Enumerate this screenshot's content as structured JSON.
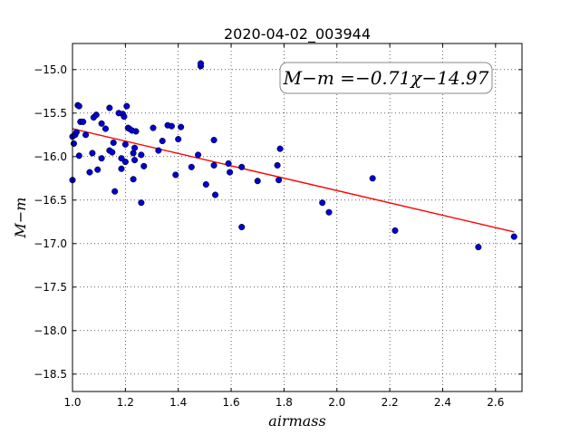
{
  "chart_data": {
    "type": "scatter",
    "title": "2020-04-02_003944",
    "xlabel": "airmass",
    "ylabel": "M−m",
    "xlim": [
      1.0,
      2.7
    ],
    "ylim": [
      -18.7,
      -14.7
    ],
    "y_inverted": true,
    "xticks": [
      1.0,
      1.2,
      1.4,
      1.6,
      1.8,
      2.0,
      2.2,
      2.4,
      2.6
    ],
    "xtick_labels": [
      "1.0",
      "1.2",
      "1.4",
      "1.6",
      "1.8",
      "2.0",
      "2.2",
      "2.4",
      "2.6"
    ],
    "yticks": [
      -15.0,
      -15.5,
      -16.0,
      -16.5,
      -17.0,
      -17.5,
      -18.0,
      -18.5
    ],
    "ytick_labels": [
      "−15.0",
      "−15.5",
      "−16.0",
      "−16.5",
      "−17.0",
      "−17.5",
      "−18.0",
      "−18.5"
    ],
    "grid": true,
    "annotation": "M−m =−0.71χ−14.97",
    "fit": {
      "slope": -0.71,
      "intercept": -14.97,
      "x_range": [
        1.0,
        2.67
      ],
      "color": "#ff0000"
    },
    "marker_color": "#0000cc",
    "points": [
      {
        "x": 1.0,
        "y": -15.77
      },
      {
        "x": 1.0,
        "y": -16.27
      },
      {
        "x": 1.005,
        "y": -15.85
      },
      {
        "x": 1.01,
        "y": -15.75
      },
      {
        "x": 1.015,
        "y": -15.72
      },
      {
        "x": 1.02,
        "y": -15.41
      },
      {
        "x": 1.025,
        "y": -15.42
      },
      {
        "x": 1.025,
        "y": -15.99
      },
      {
        "x": 1.03,
        "y": -15.6
      },
      {
        "x": 1.04,
        "y": -15.6
      },
      {
        "x": 1.05,
        "y": -15.75
      },
      {
        "x": 1.065,
        "y": -16.18
      },
      {
        "x": 1.075,
        "y": -15.96
      },
      {
        "x": 1.08,
        "y": -15.55
      },
      {
        "x": 1.09,
        "y": -15.52
      },
      {
        "x": 1.095,
        "y": -16.15
      },
      {
        "x": 1.11,
        "y": -16.02
      },
      {
        "x": 1.11,
        "y": -15.62
      },
      {
        "x": 1.125,
        "y": -15.68
      },
      {
        "x": 1.14,
        "y": -15.44
      },
      {
        "x": 1.14,
        "y": -15.93
      },
      {
        "x": 1.15,
        "y": -15.95
      },
      {
        "x": 1.155,
        "y": -15.84
      },
      {
        "x": 1.16,
        "y": -16.4
      },
      {
        "x": 1.175,
        "y": -15.5
      },
      {
        "x": 1.185,
        "y": -16.02
      },
      {
        "x": 1.185,
        "y": -16.14
      },
      {
        "x": 1.19,
        "y": -15.51
      },
      {
        "x": 1.195,
        "y": -15.54
      },
      {
        "x": 1.2,
        "y": -16.06
      },
      {
        "x": 1.2,
        "y": -15.86
      },
      {
        "x": 1.205,
        "y": -15.42
      },
      {
        "x": 1.21,
        "y": -15.67
      },
      {
        "x": 1.215,
        "y": -15.68
      },
      {
        "x": 1.225,
        "y": -15.7
      },
      {
        "x": 1.23,
        "y": -16.26
      },
      {
        "x": 1.23,
        "y": -15.96
      },
      {
        "x": 1.235,
        "y": -16.04
      },
      {
        "x": 1.235,
        "y": -15.9
      },
      {
        "x": 1.24,
        "y": -15.71
      },
      {
        "x": 1.26,
        "y": -16.53
      },
      {
        "x": 1.26,
        "y": -15.98
      },
      {
        "x": 1.27,
        "y": -16.11
      },
      {
        "x": 1.305,
        "y": -15.67
      },
      {
        "x": 1.325,
        "y": -15.93
      },
      {
        "x": 1.34,
        "y": -15.82
      },
      {
        "x": 1.36,
        "y": -15.64
      },
      {
        "x": 1.375,
        "y": -15.65
      },
      {
        "x": 1.39,
        "y": -16.21
      },
      {
        "x": 1.4,
        "y": -15.8
      },
      {
        "x": 1.41,
        "y": -15.66
      },
      {
        "x": 1.45,
        "y": -16.12
      },
      {
        "x": 1.475,
        "y": -15.98
      },
      {
        "x": 1.485,
        "y": -14.96
      },
      {
        "x": 1.485,
        "y": -14.93
      },
      {
        "x": 1.505,
        "y": -16.32
      },
      {
        "x": 1.535,
        "y": -15.81
      },
      {
        "x": 1.535,
        "y": -16.1
      },
      {
        "x": 1.54,
        "y": -16.44
      },
      {
        "x": 1.59,
        "y": -16.08
      },
      {
        "x": 1.595,
        "y": -16.18
      },
      {
        "x": 1.64,
        "y": -16.12
      },
      {
        "x": 1.64,
        "y": -16.81
      },
      {
        "x": 1.7,
        "y": -16.28
      },
      {
        "x": 1.775,
        "y": -16.1
      },
      {
        "x": 1.78,
        "y": -16.27
      },
      {
        "x": 1.785,
        "y": -15.91
      },
      {
        "x": 1.945,
        "y": -16.53
      },
      {
        "x": 1.97,
        "y": -16.64
      },
      {
        "x": 2.135,
        "y": -16.25
      },
      {
        "x": 2.22,
        "y": -16.85
      },
      {
        "x": 2.535,
        "y": -17.04
      },
      {
        "x": 2.67,
        "y": -16.92
      }
    ]
  }
}
